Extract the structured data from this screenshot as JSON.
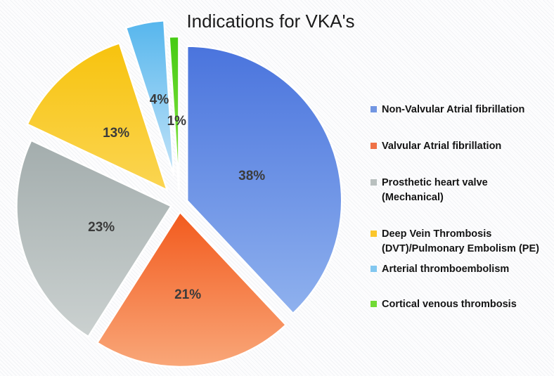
{
  "title": "Indications for VKA's",
  "chart_data": {
    "type": "pie",
    "title": "Indications for VKA's",
    "units": "percent",
    "direction": "clockwise",
    "start_angle_deg": 0,
    "legend_position": "right",
    "exploded": true,
    "pct_label_color": "#3b3b3b",
    "legend_text_color": "#141414",
    "slices": [
      {
        "label": "Non-Valvular Atrial fibrillation",
        "value": 38,
        "pct_label": "38%",
        "color_top": "#4a74dd",
        "color_bottom": "#8fb1ee",
        "legend_color": "#7296e2",
        "legend_lines": [
          "Non-Valvular Atrial fibrillation"
        ]
      },
      {
        "label": "Valvular Atrial fibrillation",
        "value": 21,
        "pct_label": "21%",
        "color_top": "#f25a1d",
        "color_bottom": "#f9a779",
        "legend_color": "#ef7146",
        "legend_lines": [
          "Valvular Atrial fibrillation"
        ]
      },
      {
        "label": "Prosthetic heart valve (Mechanical)",
        "value": 23,
        "pct_label": "23%",
        "color_top": "#a3adad",
        "color_bottom": "#cbd1d0",
        "legend_color": "#b9c0bf",
        "legend_lines": [
          "Prosthetic heart valve (Mechanical)"
        ]
      },
      {
        "label": "Deep Vein Thrombosis (DVT)/Pulmonary Embolism (PE)",
        "value": 13,
        "pct_label": "13%",
        "color_top": "#f7c30e",
        "color_bottom": "#fbd552",
        "legend_color": "#fbc62c",
        "legend_lines": [
          "Deep Vein Thrombosis",
          "(DVT)/Pulmonary Embolism (PE)"
        ]
      },
      {
        "label": "Arterial thromboembolism",
        "value": 4,
        "pct_label": "4%",
        "color_top": "#56b6ed",
        "color_bottom": "#c2e3f8",
        "legend_color": "#82c7f0",
        "legend_lines": [
          "Arterial thromboembolism"
        ]
      },
      {
        "label": "Cortical venous thrombosis",
        "value": 1,
        "pct_label": "1%",
        "color_top": "#46cb14",
        "color_bottom": "#8ee74a",
        "legend_color": "#71da35",
        "legend_lines": [
          "Cortical venous thrombosis"
        ]
      }
    ]
  }
}
